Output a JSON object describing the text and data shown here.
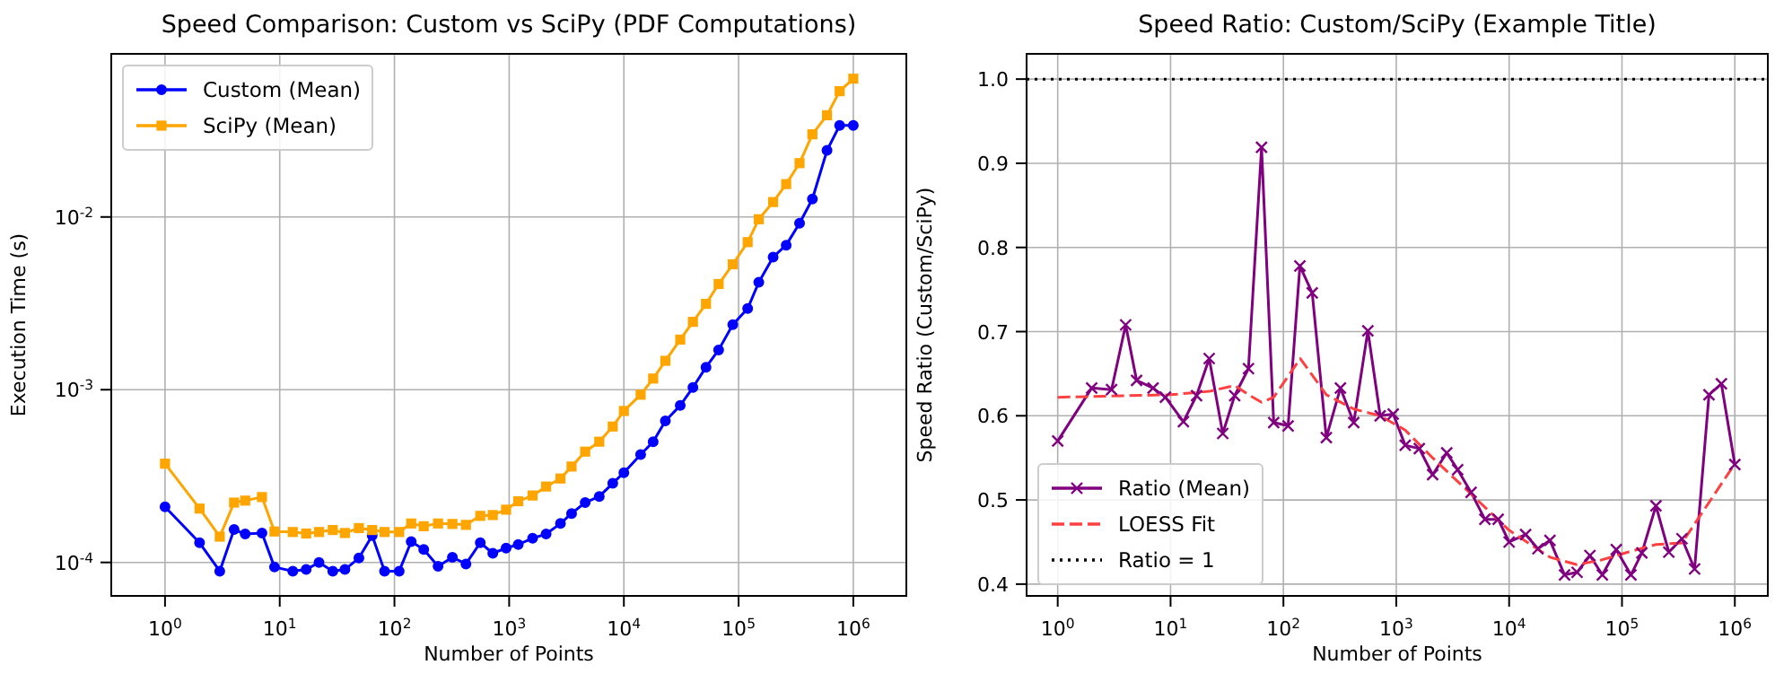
{
  "chart_data": [
    {
      "type": "line",
      "title": "Speed Comparison: Custom vs SciPy (PDF Computations)",
      "xlabel": "Number of Points",
      "ylabel": "Execution Time (s)",
      "log": "xy",
      "grid": true,
      "legend": "top left",
      "xlim": [
        0.34,
        2900000
      ],
      "ylim": [
        6.4e-05,
        0.088
      ],
      "xticks": [
        {
          "value": 1,
          "label": "10$^{0}$"
        },
        {
          "value": 10,
          "label": "10$^{1}$"
        },
        {
          "value": 100,
          "label": "10$^{2}$"
        },
        {
          "value": 1000,
          "label": "10$^{3}$"
        },
        {
          "value": 10000,
          "label": "10$^{4}$"
        },
        {
          "value": 100000,
          "label": "10$^{5}$"
        },
        {
          "value": 1000000,
          "label": "10$^{6}$"
        }
      ],
      "yticks": [
        {
          "value": 0.0001,
          "label": "10$^{-4}$"
        },
        {
          "value": 0.001,
          "label": "10$^{-3}$"
        },
        {
          "value": 0.01,
          "label": "10$^{-2}$"
        }
      ],
      "x": [
        1,
        2,
        3,
        4,
        5,
        7,
        9,
        13,
        17,
        22,
        29,
        37,
        49,
        64,
        82,
        110,
        140,
        180,
        240,
        320,
        420,
        560,
        720,
        940,
        1200,
        1600,
        2100,
        2800,
        3500,
        4600,
        6100,
        8000,
        10000,
        14000,
        18000,
        23000,
        31000,
        40000,
        52000,
        67000,
        89000,
        120000,
        150000,
        200000,
        260000,
        340000,
        440000,
        590000,
        760000,
        1000000
      ],
      "series": [
        {
          "name": "Custom (Mean)",
          "color": "#0000ff",
          "marker": "circle",
          "values": [
            0.00021,
            0.00013,
            8.9e-05,
            0.000155,
            0.000146,
            0.000148,
            9.4e-05,
            8.9e-05,
            9.1e-05,
            0.0001,
            8.9e-05,
            9.1e-05,
            0.000106,
            0.000143,
            8.9e-05,
            8.9e-05,
            0.000132,
            0.000119,
            9.5e-05,
            0.000107,
            9.8e-05,
            0.00013,
            0.000113,
            0.000121,
            0.000127,
            0.000138,
            0.000146,
            0.000168,
            0.000192,
            0.000222,
            0.000241,
            0.000287,
            0.000331,
            0.000421,
            0.0005,
            0.00066,
            0.00081,
            0.00103,
            0.00135,
            0.0017,
            0.00238,
            0.00295,
            0.00419,
            0.00586,
            0.00687,
            0.0092,
            0.0127,
            0.0243,
            0.0339,
            0.0339
          ]
        },
        {
          "name": "SciPy (Mean)",
          "color": "#ffa500",
          "marker": "square",
          "values": [
            0.000373,
            0.000205,
            0.000141,
            0.000222,
            0.000228,
            0.000239,
            0.000151,
            0.00015,
            0.000147,
            0.00015,
            0.000154,
            0.000148,
            0.000158,
            0.000154,
            0.00015,
            0.00015,
            0.000168,
            0.000162,
            0.000168,
            0.000167,
            0.000165,
            0.000186,
            0.000188,
            0.000202,
            0.000226,
            0.000244,
            0.000275,
            0.000306,
            0.000359,
            0.000438,
            0.0005,
            0.000612,
            0.000753,
            0.000935,
            0.00116,
            0.00147,
            0.00195,
            0.00247,
            0.00314,
            0.00409,
            0.00532,
            0.00715,
            0.0097,
            0.0122,
            0.0155,
            0.0205,
            0.0301,
            0.0388,
            0.0535,
            0.0632
          ]
        }
      ]
    },
    {
      "type": "line",
      "title": "Speed Ratio: Custom/SciPy (Example Title)",
      "xlabel": "Number of Points",
      "ylabel": "Speed Ratio (Custom/SciPy)",
      "log": "x",
      "grid": true,
      "legend": "bottom left",
      "xlim": [
        0.53,
        1960000
      ],
      "ylim": [
        0.386,
        1.03
      ],
      "xticks": [
        {
          "value": 1,
          "label": "10$^{0}$"
        },
        {
          "value": 10,
          "label": "10$^{1}$"
        },
        {
          "value": 100,
          "label": "10$^{2}$"
        },
        {
          "value": 1000,
          "label": "10$^{3}$"
        },
        {
          "value": 10000,
          "label": "10$^{4}$"
        },
        {
          "value": 100000,
          "label": "10$^{5}$"
        },
        {
          "value": 1000000,
          "label": "10$^{6}$"
        }
      ],
      "yticks": [
        {
          "value": 0.4,
          "label": "0.4"
        },
        {
          "value": 0.5,
          "label": "0.5"
        },
        {
          "value": 0.6,
          "label": "0.6"
        },
        {
          "value": 0.7,
          "label": "0.7"
        },
        {
          "value": 0.8,
          "label": "0.8"
        },
        {
          "value": 0.9,
          "label": "0.9"
        },
        {
          "value": 1.0,
          "label": "1.0"
        }
      ],
      "x": [
        1,
        2,
        3,
        4,
        5,
        7,
        9,
        13,
        17,
        22,
        29,
        37,
        49,
        64,
        82,
        110,
        140,
        180,
        240,
        320,
        420,
        560,
        720,
        940,
        1200,
        1600,
        2100,
        2800,
        3500,
        4600,
        6100,
        8000,
        10000,
        14000,
        18000,
        23000,
        31000,
        40000,
        52000,
        67000,
        89000,
        120000,
        150000,
        200000,
        260000,
        340000,
        440000,
        590000,
        760000,
        1000000
      ],
      "series": [
        {
          "name": "Ratio (Mean)",
          "color": "#800080",
          "marker": "cross",
          "values": [
            0.57,
            0.633,
            0.631,
            0.708,
            0.642,
            0.633,
            0.622,
            0.593,
            0.624,
            0.668,
            0.579,
            0.624,
            0.656,
            0.919,
            0.592,
            0.588,
            0.778,
            0.746,
            0.574,
            0.633,
            0.592,
            0.701,
            0.6,
            0.602,
            0.565,
            0.561,
            0.53,
            0.556,
            0.536,
            0.509,
            0.477,
            0.477,
            0.45,
            0.459,
            0.442,
            0.452,
            0.411,
            0.414,
            0.434,
            0.411,
            0.441,
            0.411,
            0.437,
            0.493,
            0.438,
            0.454,
            0.418,
            0.625,
            0.638,
            0.542
          ]
        },
        {
          "name": "LOESS Fit",
          "color": "#ff4040",
          "marker": "none",
          "line_style": "dashed",
          "x": [
            1,
            10,
            22,
            37,
            49,
            64,
            82,
            141,
            240,
            420,
            720,
            1200,
            2100,
            4600,
            10000,
            23000,
            40000,
            67000,
            120000,
            200000,
            340000,
            1000000
          ],
          "values": [
            0.622,
            0.625,
            0.629,
            0.636,
            0.625,
            0.616,
            0.622,
            0.668,
            0.625,
            0.608,
            0.6,
            0.583,
            0.55,
            0.507,
            0.464,
            0.432,
            0.423,
            0.429,
            0.439,
            0.447,
            0.449,
            0.543
          ]
        }
      ],
      "ref_lines": [
        {
          "axis": "y",
          "value": 1.0,
          "label": "Ratio = 1",
          "color": "#000000",
          "line_style": "dotted"
        }
      ]
    }
  ]
}
